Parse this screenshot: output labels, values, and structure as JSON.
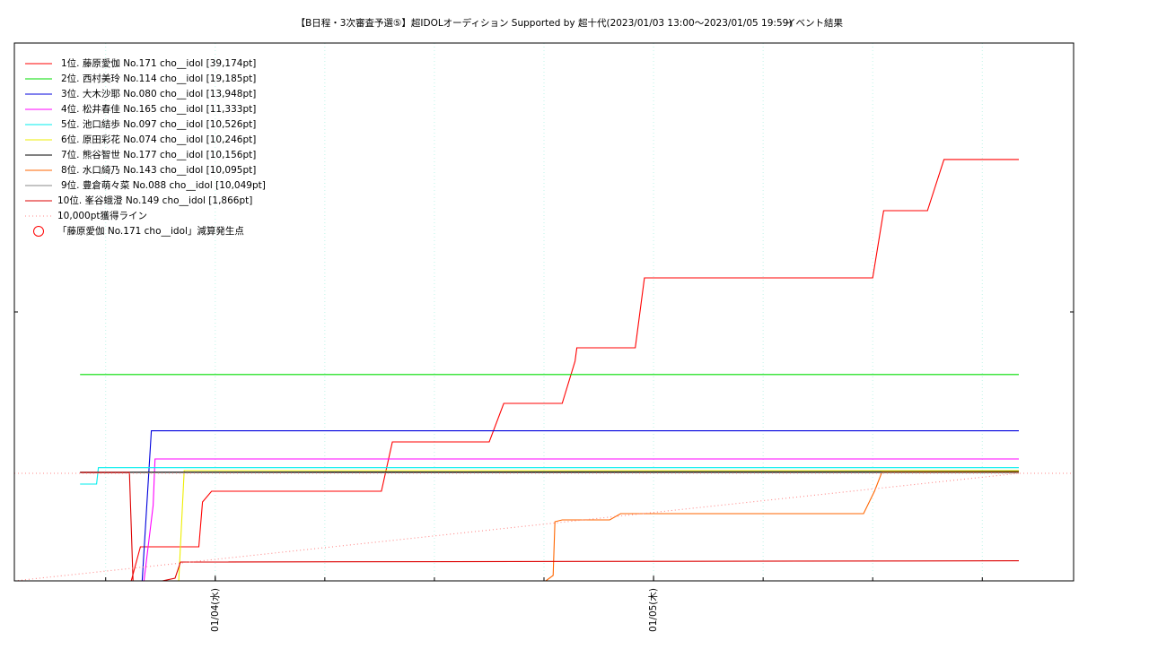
{
  "chart_data": {
    "type": "line",
    "title": "【B日程・3次審査予選⑤】超IDOLオーディション Supported by 超十代(2023/01/03 13:00～2023/01/05 19:59)",
    "subtitle": "イベント結果",
    "xlim": [
      13,
      71
    ],
    "xticks": [
      {
        "value": 24,
        "label": "01/04(水)"
      },
      {
        "value": 48,
        "label": "01/05(木)"
      }
    ],
    "ylim": [
      0,
      50000
    ],
    "grid": true,
    "legend": "upper-left",
    "series": [
      {
        "name": "1位. 藤原愛伽 No.171 cho__idol [39,174pt]",
        "color": "#ff0000",
        "x": [
          19.4,
          19.9,
          23.1,
          23.3,
          23.8,
          33.1,
          33.7,
          39.0,
          39.8,
          43.0,
          43.7,
          43.8,
          47.0,
          47.5,
          60.0,
          60.6,
          63.0,
          63.9,
          68.0
        ],
        "values": [
          0,
          3167,
          3167,
          7333,
          8333,
          8333,
          12917,
          12917,
          16500,
          16500,
          20417,
          21667,
          21667,
          28167,
          28167,
          34417,
          34417,
          39174,
          39174
        ]
      },
      {
        "name": "2位. 西村美玲 No.114 cho__idol [19,185pt]",
        "color": "#00dd00",
        "x": [
          16.6,
          68.0
        ],
        "values": [
          19185,
          19185
        ]
      },
      {
        "name": "3位. 大木沙耶 No.080 cho__idol [13,948pt]",
        "color": "#0000dd",
        "x": [
          20.0,
          20.5,
          68.0
        ],
        "values": [
          0,
          13948,
          13948
        ]
      },
      {
        "name": "4位. 松井春佳 No.165 cho__idol [11,333pt]",
        "color": "#ff00ff",
        "x": [
          20.1,
          20.6,
          20.7,
          68.0
        ],
        "values": [
          0,
          7000,
          11333,
          11333
        ]
      },
      {
        "name": "5位. 池口結歩 No.097 cho__idol [10,526pt]",
        "color": "#00eeee",
        "x": [
          16.6,
          17.5,
          17.6,
          68.0
        ],
        "values": [
          9000,
          9000,
          10526,
          10526
        ]
      },
      {
        "name": "6位. 原田彩花 No.074 cho__idol [10,246pt]",
        "color": "#eeee00",
        "x": [
          22.0,
          22.3,
          68.0
        ],
        "values": [
          0,
          10246,
          10246
        ]
      },
      {
        "name": "7位. 熊谷智世 No.177 cho__idol [10,156pt]",
        "color": "#000000",
        "x": [
          16.6,
          68.0
        ],
        "values": [
          10100,
          10156
        ]
      },
      {
        "name": "8位. 水口綺乃 No.143 cho__idol [10,095pt]",
        "color": "#ff6600",
        "x": [
          42.1,
          42.5,
          42.6,
          43.0,
          45.6,
          46.2,
          59.5,
          60.1,
          60.5,
          68.0
        ],
        "values": [
          0,
          500,
          5500,
          5667,
          5667,
          6250,
          6250,
          8333,
          10095,
          10095
        ]
      },
      {
        "name": "9位. 豊倉萌々菜 No.088 cho__idol [10,049pt]",
        "color": "#888888",
        "x": [
          16.6,
          68.0
        ],
        "values": [
          10049,
          10049
        ]
      },
      {
        "name": "10位. 峯谷蛾澄 No.149 cho__idol [1,866pt]",
        "color": "#dd0000",
        "x": [
          16.6,
          19.3,
          19.5,
          21.1,
          21.8,
          22.1,
          68.0
        ],
        "values": [
          10083,
          10083,
          0,
          0,
          250,
          1750,
          1866
        ]
      },
      {
        "name": "10,000pt獲得ライン",
        "color": "#ff8888",
        "dash": true,
        "level": 10000,
        "x": [
          13,
          68.0
        ],
        "values": [
          0,
          10000
        ]
      },
      {
        "name": "「藤原愛伽 No.171 cho__idol」減算発生点",
        "color": "#ff0000",
        "marker": "circle",
        "x": [],
        "values": []
      }
    ]
  }
}
